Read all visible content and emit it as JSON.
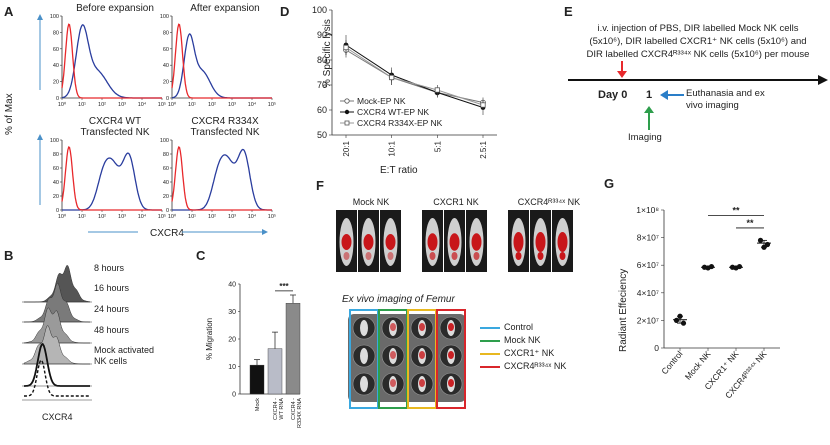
{
  "panel_letters": {
    "A": "A",
    "B": "B",
    "C": "C",
    "D": "D",
    "E": "E",
    "F": "F",
    "G": "G"
  },
  "panel_A": {
    "titles": [
      "Before expansion",
      "After expansion",
      "CXCR4 WT\nTransfected NK",
      "CXCR4 R334X\nTransfected NK"
    ],
    "ylabel": "% of Max",
    "xlabel": "CXCR4",
    "yticks": [
      "0",
      "20",
      "40",
      "60",
      "80",
      "100"
    ],
    "xticks": [
      "10⁰",
      "10¹",
      "10²",
      "10³",
      "10⁴",
      "10⁵"
    ],
    "colors": {
      "red": "#e8292c",
      "blue": "#2a3d9e",
      "axis_arrow": "#4a90c8"
    }
  },
  "panel_B": {
    "labels": [
      "8 hours",
      "16 hours",
      "24 hours",
      "48 hours",
      "Mock activated\nNK cells"
    ],
    "xlabel": "CXCR4",
    "colors": [
      "#555555",
      "#7a7a7a",
      "#9a9a9a",
      "#b5b5b5"
    ]
  },
  "panel_D": {
    "ylabel": "% Specific lysis",
    "xlabel": "E:T ratio",
    "legend": [
      "Mock-EP NK",
      "CXCR4 WT-EP NK",
      "CXCR4 R334X-EP NK"
    ]
  },
  "panel_E": {
    "text_line1": "i.v. injection of PBS, DIR labelled Mock NK cells",
    "text_line2": "(5x10⁶), DIR labelled CXCR1⁺ NK cells (5x10⁶) and",
    "text_line3": "DIR labelled CXCR4ᴿ³³⁴ˣ NK cells (5x10⁶) per mouse",
    "day0": "Day 0",
    "day1": "1",
    "euth": "Euthanasia and ex",
    "euth2": "vivo imaging",
    "imaging": "Imaging"
  },
  "panel_F": {
    "groups": [
      "Mock NK",
      "CXCR1 NK",
      "CXCR4ᴿ³³⁴ˣ NK"
    ],
    "exvivo_title": "Ex vivo imaging of Femur",
    "legend": [
      {
        "label": "Control",
        "color": "#3aa8df"
      },
      {
        "label": "Mock NK",
        "color": "#2e9e4c"
      },
      {
        "label": "CXCR1⁺ NK",
        "color": "#e8b820"
      },
      {
        "label": "CXCR4ᴿ³³⁴ˣ NK",
        "color": "#d9262b"
      }
    ]
  },
  "panel_G": {
    "ylabel": "Radiant Effeciency",
    "sig1": "**",
    "sig2": "**"
  },
  "panel_C": {
    "ylabel": "% Migration",
    "sig": "***"
  },
  "chart_data": [
    {
      "id": "C",
      "type": "bar",
      "categories": [
        "Mock",
        "CXCR4 -\nWT RNA",
        "CXCR4 -\nR334X RNA"
      ],
      "values": [
        10.5,
        16.5,
        33
      ],
      "errors": [
        2,
        6,
        3
      ],
      "colors": [
        "#111111",
        "#b9bcc8",
        "#8a8a8a"
      ],
      "yticks": [
        "0",
        "10",
        "20",
        "30",
        "40"
      ],
      "ylim": [
        0,
        40
      ],
      "ylabel": "% Migration"
    },
    {
      "id": "D",
      "type": "line",
      "categories": [
        "20:1",
        "10:1",
        "5:1",
        "2.5:1"
      ],
      "series": [
        {
          "name": "Mock-EP NK",
          "values": [
            84,
            73,
            67,
            63
          ],
          "errors": [
            3,
            3,
            2,
            2
          ],
          "marker": "open-circle"
        },
        {
          "name": "CXCR4 WT-EP NK",
          "values": [
            86,
            74,
            67,
            61
          ],
          "errors": [
            4,
            3,
            2,
            3
          ],
          "marker": "filled-circle"
        },
        {
          "name": "CXCR4 R334X-EP NK",
          "values": [
            85,
            73,
            68,
            62
          ],
          "errors": [
            3,
            3,
            2,
            2
          ],
          "marker": "open-square"
        }
      ],
      "yticks": [
        "50",
        "60",
        "70",
        "80",
        "90",
        "100"
      ],
      "ylim": [
        50,
        100
      ],
      "ylabel": "% Specific lysis",
      "xlabel": "E:T ratio"
    },
    {
      "id": "G",
      "type": "scatter",
      "categories": [
        "Control",
        "Mock NK",
        "CXCR1⁺ NK",
        "CXCR4ᴿ³³⁴ˣ NK"
      ],
      "values": [
        [
          20000000,
          23000000,
          18000000
        ],
        [
          58500000,
          58000000,
          59000000
        ],
        [
          58500000,
          58000000,
          59000000
        ],
        [
          78000000,
          73000000,
          75000000
        ]
      ],
      "means": [
        20500000,
        58500000,
        58500000,
        76000000
      ],
      "yticks": [
        "0",
        "2×10⁷",
        "4×10⁷",
        "6×10⁷",
        "8×10⁷",
        "1×10⁸"
      ],
      "ylim": [
        0,
        100000000
      ],
      "ylabel": "Radiant Effeciency"
    }
  ]
}
